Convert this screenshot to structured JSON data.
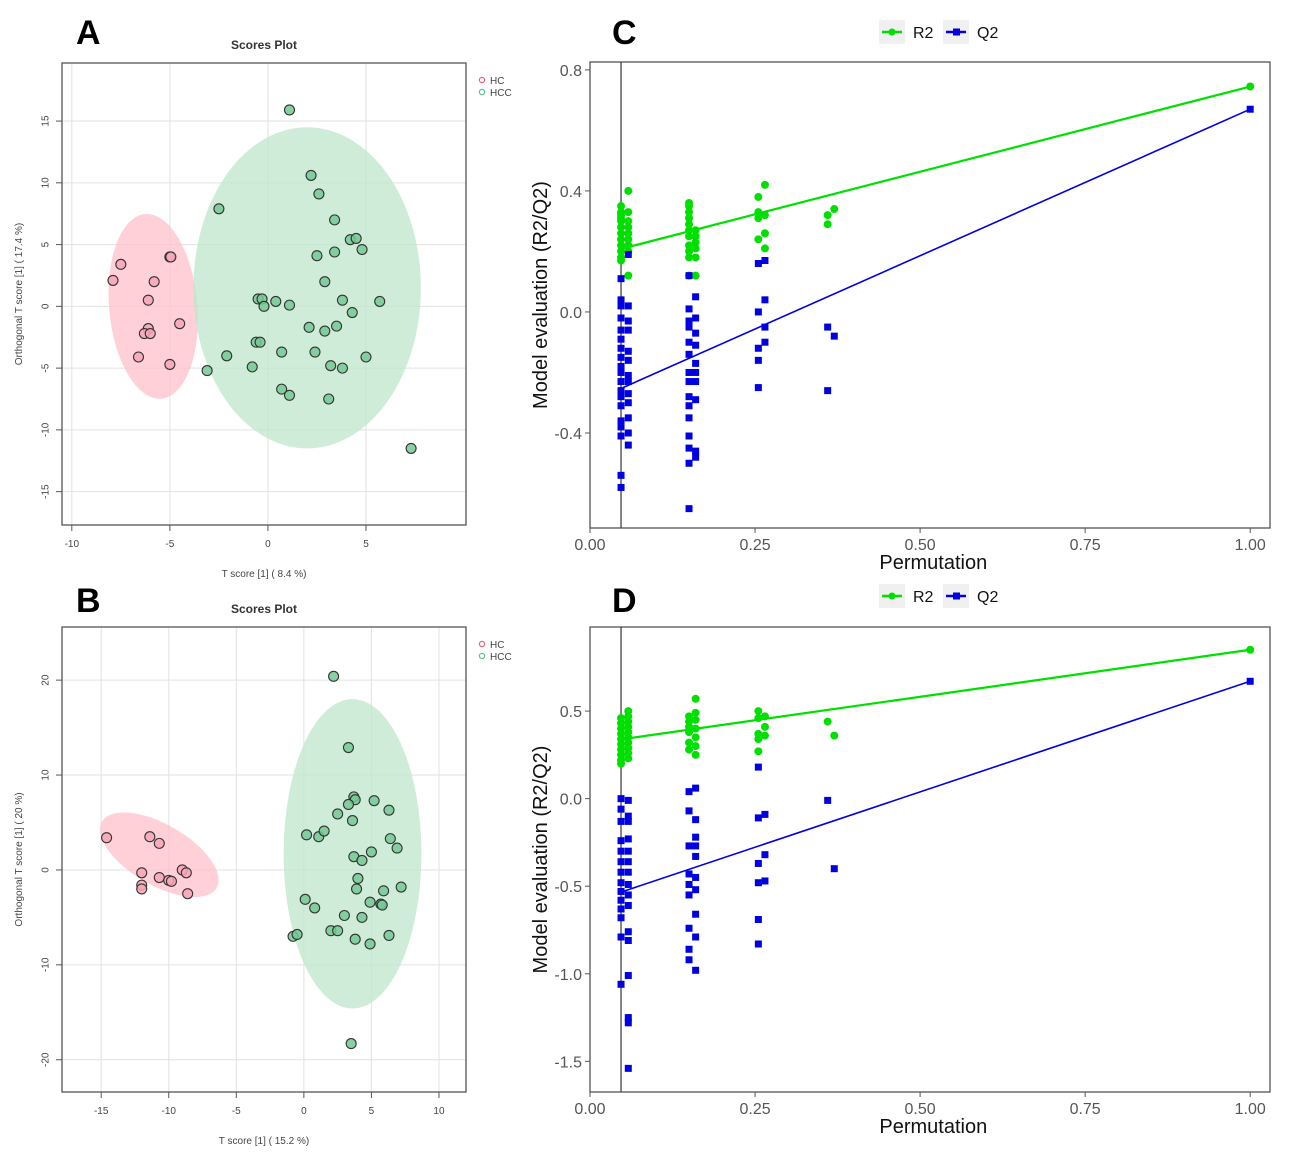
{
  "panel_labels": [
    "A",
    "B",
    "C",
    "D"
  ],
  "colors": {
    "hc": "#f0607a",
    "hc_fill": "#f7a6b4",
    "hc_ellipse": "#ffc0cb",
    "hcc": "#5cc08a",
    "hcc_fill": "#74c993",
    "hcc_ellipse": "#bfe6cc",
    "r2": "#00e000",
    "q2": "#0000e0"
  },
  "chart_data": [
    {
      "id": "A",
      "type": "scatter",
      "title": "Scores Plot",
      "xlabel": "T score [1] ( 8.4 %)",
      "ylabel": "Orthogonal T score [1] ( 17.4 %)",
      "xlim": [
        -10.5,
        10.1
      ],
      "ylim": [
        -17.7,
        19.7
      ],
      "xticks": [
        -10,
        -5,
        0,
        5
      ],
      "yticks": [
        -15,
        -10,
        -5,
        0,
        5,
        10,
        15
      ],
      "grid": true,
      "legend": {
        "position": "right",
        "entries": [
          "HC",
          "HCC"
        ]
      },
      "series": [
        {
          "name": "HC",
          "points": [
            [
              -7.9,
              2.1
            ],
            [
              -7.5,
              3.4
            ],
            [
              -5.0,
              4.0
            ],
            [
              -4.95,
              4.0
            ],
            [
              -5.8,
              2.0
            ],
            [
              -6.1,
              0.5
            ],
            [
              -4.5,
              -1.4
            ],
            [
              -6.1,
              -1.8
            ],
            [
              -6.3,
              -2.2
            ],
            [
              -6.0,
              -2.2
            ],
            [
              -6.6,
              -4.1
            ],
            [
              -5.0,
              -4.7
            ]
          ],
          "ellipse": {
            "center": [
              -5.85,
              0.0
            ],
            "semi_axes": [
              2.25,
              7.5
            ]
          }
        },
        {
          "name": "HCC",
          "points": [
            [
              1.1,
              15.9
            ],
            [
              2.2,
              10.6
            ],
            [
              2.6,
              9.1
            ],
            [
              -2.5,
              7.9
            ],
            [
              3.4,
              7.0
            ],
            [
              4.2,
              5.4
            ],
            [
              4.5,
              5.5
            ],
            [
              4.8,
              4.6
            ],
            [
              2.5,
              4.1
            ],
            [
              3.4,
              4.4
            ],
            [
              2.9,
              2.0
            ],
            [
              -0.5,
              0.6
            ],
            [
              -0.3,
              0.6
            ],
            [
              0.4,
              0.4
            ],
            [
              -0.2,
              0.0
            ],
            [
              1.1,
              0.1
            ],
            [
              3.8,
              0.5
            ],
            [
              5.7,
              0.4
            ],
            [
              4.3,
              -0.5
            ],
            [
              2.1,
              -1.7
            ],
            [
              3.5,
              -1.6
            ],
            [
              2.9,
              -2.0
            ],
            [
              -0.6,
              -2.9
            ],
            [
              -0.4,
              -2.9
            ],
            [
              -2.1,
              -4.0
            ],
            [
              0.7,
              -3.7
            ],
            [
              2.4,
              -3.7
            ],
            [
              5.0,
              -4.1
            ],
            [
              -0.8,
              -4.9
            ],
            [
              3.2,
              -4.8
            ],
            [
              3.8,
              -5.0
            ],
            [
              -3.1,
              -5.2
            ],
            [
              0.7,
              -6.7
            ],
            [
              1.1,
              -7.2
            ],
            [
              3.1,
              -7.5
            ],
            [
              7.3,
              -11.5
            ]
          ],
          "ellipse": {
            "center": [
              2.0,
              1.5
            ],
            "semi_axes": [
              5.8,
              13.0
            ]
          }
        }
      ]
    },
    {
      "id": "B",
      "type": "scatter",
      "title": "Scores Plot",
      "xlabel": "T score [1] ( 15.2 %)",
      "ylabel": "Orthogonal T score [1] ( 20 %)",
      "xlim": [
        -17.9,
        12.0
      ],
      "ylim": [
        -23.4,
        25.6
      ],
      "xticks": [
        -15,
        -10,
        -5,
        0,
        5,
        10
      ],
      "yticks": [
        -20,
        -10,
        0,
        10,
        20
      ],
      "grid": true,
      "legend": {
        "position": "right",
        "entries": [
          "HC",
          "HCC"
        ]
      },
      "series": [
        {
          "name": "HC",
          "points": [
            [
              -14.6,
              3.4
            ],
            [
              -11.4,
              3.5
            ],
            [
              -10.7,
              2.8
            ],
            [
              -12.0,
              -0.3
            ],
            [
              -12.0,
              -1.6
            ],
            [
              -12.0,
              -2.0
            ],
            [
              -10.7,
              -0.8
            ],
            [
              -10.0,
              -1.1
            ],
            [
              -9.8,
              -1.2
            ],
            [
              -9.0,
              0.0
            ],
            [
              -8.7,
              -0.3
            ],
            [
              -8.6,
              -2.5
            ]
          ],
          "ellipse": {
            "center": [
              -10.7,
              1.6
            ],
            "semi_axes": [
              4.9,
              3.2
            ]
          }
        },
        {
          "name": "HCC",
          "points": [
            [
              2.2,
              20.4
            ],
            [
              3.3,
              12.9
            ],
            [
              3.7,
              7.7
            ],
            [
              3.8,
              7.4
            ],
            [
              3.3,
              6.9
            ],
            [
              5.2,
              7.3
            ],
            [
              6.3,
              6.3
            ],
            [
              2.5,
              5.9
            ],
            [
              3.6,
              5.2
            ],
            [
              0.2,
              3.7
            ],
            [
              1.1,
              3.5
            ],
            [
              1.5,
              4.1
            ],
            [
              6.4,
              3.3
            ],
            [
              6.9,
              2.3
            ],
            [
              3.7,
              1.4
            ],
            [
              4.3,
              1.0
            ],
            [
              5.0,
              1.9
            ],
            [
              4.0,
              -0.9
            ],
            [
              3.9,
              -2.0
            ],
            [
              5.9,
              -2.2
            ],
            [
              7.2,
              -1.8
            ],
            [
              0.1,
              -3.1
            ],
            [
              0.8,
              -4.0
            ],
            [
              4.9,
              -3.4
            ],
            [
              5.7,
              -3.6
            ],
            [
              5.8,
              -3.7
            ],
            [
              3.0,
              -4.8
            ],
            [
              4.3,
              -5.0
            ],
            [
              2.0,
              -6.4
            ],
            [
              2.5,
              -6.4
            ],
            [
              -0.8,
              -7.0
            ],
            [
              -0.5,
              -6.8
            ],
            [
              3.8,
              -7.3
            ],
            [
              4.9,
              -7.8
            ],
            [
              6.3,
              -6.9
            ],
            [
              3.5,
              -18.3
            ]
          ],
          "ellipse": {
            "center": [
              3.6,
              1.7
            ],
            "semi_axes": [
              5.1,
              16.3
            ]
          }
        }
      ]
    },
    {
      "id": "C",
      "type": "scatter",
      "xlabel": "Permutation",
      "ylabel": "Model evaluation (R2/Q2)",
      "xlim": [
        0,
        1.03
      ],
      "ylim": [
        -0.714,
        0.826
      ],
      "xticks": [
        "0.00",
        "0.25",
        "0.50",
        "0.75",
        "1.00"
      ],
      "yticks": [
        "-0.4",
        "0.0",
        "0.4",
        "0.8"
      ],
      "vline_x": 0.047,
      "grid": false,
      "legend": {
        "position": "top",
        "entries": [
          "R2",
          "Q2"
        ]
      },
      "series": [
        {
          "name": "R2",
          "fit_line": [
            [
              0.05,
              0.21
            ],
            [
              1.0,
              0.745
            ]
          ],
          "columns": [
            {
              "x": 0.047,
              "y": [
                0.35,
                0.33,
                0.32,
                0.3,
                0.28,
                0.26,
                0.24,
                0.22,
                0.2,
                0.18,
                0.17,
                0.31
              ]
            },
            {
              "x": 0.058,
              "y": [
                0.4,
                0.33,
                0.3,
                0.28,
                0.26,
                0.24,
                0.22,
                0.2,
                0.12
              ]
            },
            {
              "x": 0.15,
              "y": [
                0.36,
                0.35,
                0.33,
                0.31,
                0.29,
                0.27,
                0.25,
                0.22,
                0.2,
                0.18,
                0.12
              ]
            },
            {
              "x": 0.16,
              "y": [
                0.27,
                0.25,
                0.23,
                0.21,
                0.18,
                0.12
              ]
            },
            {
              "x": 0.255,
              "y": [
                0.38,
                0.33,
                0.31,
                0.24
              ]
            },
            {
              "x": 0.265,
              "y": [
                0.42,
                0.32,
                0.26,
                0.21
              ]
            },
            {
              "x": 0.36,
              "y": [
                0.32,
                0.29
              ]
            },
            {
              "x": 0.37,
              "y": [
                0.34
              ]
            },
            {
              "x": 1.0,
              "y": [
                0.745
              ]
            }
          ]
        },
        {
          "name": "Q2",
          "fit_line": [
            [
              0.05,
              -0.25
            ],
            [
              1.0,
              0.67
            ]
          ],
          "columns": [
            {
              "x": 0.047,
              "y": [
                0.11,
                0.04,
                0.02,
                -0.02,
                -0.06,
                -0.09,
                -0.12,
                -0.15,
                -0.18,
                -0.2,
                -0.23,
                -0.26,
                -0.28,
                -0.31,
                -0.36,
                -0.38,
                -0.41,
                -0.54,
                -0.58
              ]
            },
            {
              "x": 0.058,
              "y": [
                0.19,
                0.02,
                -0.03,
                -0.06,
                -0.13,
                -0.16,
                -0.21,
                -0.23,
                -0.27,
                -0.3,
                -0.35,
                -0.4,
                -0.44
              ]
            },
            {
              "x": 0.15,
              "y": [
                0.12,
                0.01,
                -0.03,
                -0.05,
                -0.1,
                -0.14,
                -0.2,
                -0.23,
                -0.28,
                -0.31,
                -0.35,
                -0.41,
                -0.45,
                -0.5,
                -0.65
              ]
            },
            {
              "x": 0.16,
              "y": [
                0.05,
                -0.02,
                -0.07,
                -0.11,
                -0.17,
                -0.2,
                -0.23,
                -0.29,
                -0.46,
                -0.48
              ]
            },
            {
              "x": 0.255,
              "y": [
                0.16,
                0.0,
                -0.12,
                -0.16,
                -0.25
              ]
            },
            {
              "x": 0.265,
              "y": [
                0.17,
                0.04,
                -0.05,
                -0.1
              ]
            },
            {
              "x": 0.36,
              "y": [
                -0.05,
                -0.26
              ]
            },
            {
              "x": 0.37,
              "y": [
                -0.08
              ]
            },
            {
              "x": 1.0,
              "y": [
                0.67
              ]
            }
          ]
        }
      ]
    },
    {
      "id": "D",
      "type": "scatter",
      "xlabel": "Permutation",
      "ylabel": "Model evaluation (R2/Q2)",
      "xlim": [
        0,
        1.03
      ],
      "ylim": [
        -1.675,
        0.98
      ],
      "xticks": [
        "0.00",
        "0.25",
        "0.50",
        "0.75",
        "1.00"
      ],
      "yticks": [
        "-1.5",
        "-1.0",
        "-0.5",
        "0.0",
        "0.5"
      ],
      "vline_x": 0.047,
      "grid": false,
      "legend": {
        "position": "top",
        "entries": [
          "R2",
          "Q2"
        ]
      },
      "series": [
        {
          "name": "R2",
          "fit_line": [
            [
              0.05,
              0.34
            ],
            [
              1.0,
              0.85
            ]
          ],
          "columns": [
            {
              "x": 0.047,
              "y": [
                0.46,
                0.43,
                0.4,
                0.37,
                0.34,
                0.31,
                0.28,
                0.25,
                0.22,
                0.2
              ]
            },
            {
              "x": 0.058,
              "y": [
                0.5,
                0.47,
                0.44,
                0.41,
                0.38,
                0.35,
                0.32,
                0.29,
                0.26,
                0.23
              ]
            },
            {
              "x": 0.15,
              "y": [
                0.47,
                0.44,
                0.41,
                0.38,
                0.32,
                0.28
              ]
            },
            {
              "x": 0.16,
              "y": [
                0.57,
                0.49,
                0.45,
                0.4,
                0.35,
                0.3,
                0.25
              ]
            },
            {
              "x": 0.255,
              "y": [
                0.5,
                0.46,
                0.37,
                0.34,
                0.27
              ]
            },
            {
              "x": 0.265,
              "y": [
                0.47,
                0.41,
                0.36
              ]
            },
            {
              "x": 0.36,
              "y": [
                0.44
              ]
            },
            {
              "x": 0.37,
              "y": [
                0.36
              ]
            },
            {
              "x": 1.0,
              "y": [
                0.85
              ]
            }
          ]
        },
        {
          "name": "Q2",
          "fit_line": [
            [
              0.05,
              -0.53
            ],
            [
              1.0,
              0.67
            ]
          ],
          "columns": [
            {
              "x": 0.047,
              "y": [
                0.0,
                -0.06,
                -0.13,
                -0.24,
                -0.3,
                -0.36,
                -0.42,
                -0.48,
                -0.53,
                -0.58,
                -0.63,
                -0.68,
                -0.79,
                -1.06
              ]
            },
            {
              "x": 0.058,
              "y": [
                -0.01,
                -0.1,
                -0.13,
                -0.23,
                -0.3,
                -0.36,
                -0.42,
                -0.49,
                -0.55,
                -0.61,
                -0.76,
                -0.81,
                -1.01,
                -1.25,
                -1.28,
                -1.54
              ]
            },
            {
              "x": 0.15,
              "y": [
                0.04,
                -0.07,
                -0.27,
                -0.43,
                -0.49,
                -0.55,
                -0.74,
                -0.86,
                -0.92
              ]
            },
            {
              "x": 0.16,
              "y": [
                0.06,
                -0.12,
                -0.22,
                -0.27,
                -0.33,
                -0.45,
                -0.52,
                -0.66,
                -0.79,
                -0.98
              ]
            },
            {
              "x": 0.255,
              "y": [
                0.18,
                -0.11,
                -0.37,
                -0.48,
                -0.69,
                -0.83
              ]
            },
            {
              "x": 0.265,
              "y": [
                -0.09,
                -0.32,
                -0.47
              ]
            },
            {
              "x": 0.36,
              "y": [
                -0.01
              ]
            },
            {
              "x": 0.37,
              "y": [
                -0.4
              ]
            },
            {
              "x": 1.0,
              "y": [
                0.67
              ]
            }
          ]
        }
      ]
    }
  ]
}
